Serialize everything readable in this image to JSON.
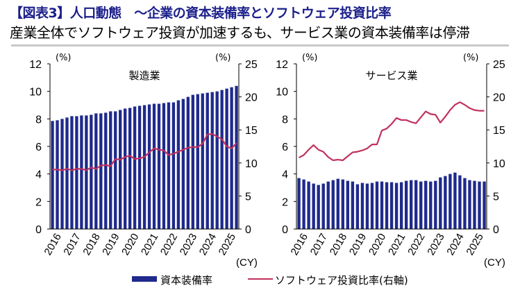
{
  "header": {
    "title": "【図表3】人口動態　～企業の資本装備率とソフトウェア投資比率",
    "subtitle": "産業全体でソフトウェア投資が加速するも、サービス業の資本装備率は停滞"
  },
  "legend": {
    "bar": "資本装備率",
    "line": "ソフトウェア投資比率(右軸)",
    "position": "bottom-center"
  },
  "colors": {
    "bar": "#1f2a8c",
    "line": "#c2305c",
    "title": "#1b1f8a"
  },
  "chart_data": [
    {
      "type": "bar+line",
      "title": "製造業",
      "left_unit": "(%)",
      "right_unit": "(%)",
      "x_unit": "(CY)",
      "ylim": [
        0,
        12
      ],
      "yticks": [
        "0",
        "2",
        "4",
        "6",
        "8",
        "10",
        "12"
      ],
      "y2lim": [
        0,
        25
      ],
      "y2ticks": [
        "0",
        "5",
        "10",
        "15",
        "20",
        "25"
      ],
      "xticks": [
        "2016",
        "2017",
        "2018",
        "2019",
        "2020",
        "2021",
        "2022",
        "2023",
        "2024",
        "2025"
      ],
      "series": [
        {
          "name": "資本装備率",
          "axis": "left",
          "values": [
            7.85,
            7.9,
            8.0,
            8.1,
            8.2,
            8.2,
            8.25,
            8.25,
            8.3,
            8.4,
            8.4,
            8.45,
            8.55,
            8.55,
            8.65,
            8.75,
            8.8,
            8.9,
            8.95,
            9.0,
            9.05,
            9.1,
            9.1,
            9.15,
            9.2,
            9.2,
            9.35,
            9.45,
            9.6,
            9.75,
            9.8,
            9.85,
            9.9,
            9.95,
            10.0,
            10.1,
            10.2,
            10.3,
            10.4
          ]
        },
        {
          "name": "ソフトウェア投資比率(右軸)",
          "axis": "right",
          "values": [
            9.0,
            9.0,
            8.9,
            9.1,
            8.9,
            9.1,
            9.1,
            8.9,
            9.3,
            9.1,
            9.6,
            9.7,
            9.5,
            10.6,
            10.5,
            10.9,
            11.1,
            10.6,
            10.7,
            10.9,
            11.6,
            12.2,
            12.0,
            11.9,
            11.2,
            11.4,
            11.7,
            12.0,
            12.3,
            12.4,
            12.4,
            12.9,
            14.3,
            14.4,
            14.0,
            13.6,
            12.5,
            12.2,
            13.0
          ]
        }
      ]
    },
    {
      "type": "bar+line",
      "title": "サービス業",
      "left_unit": "(%)",
      "right_unit": "(%)",
      "x_unit": "(CY)",
      "ylim": [
        0,
        12
      ],
      "yticks": [
        "0",
        "2",
        "4",
        "6",
        "8",
        "10",
        "12"
      ],
      "y2lim": [
        0,
        25
      ],
      "y2ticks": [
        "0",
        "5",
        "10",
        "15",
        "20",
        "25"
      ],
      "xticks": [
        "2016",
        "2017",
        "2018",
        "2019",
        "2020",
        "2021",
        "2022",
        "2023",
        "2024",
        "2025"
      ],
      "series": [
        {
          "name": "資本装備率",
          "axis": "left",
          "values": [
            3.7,
            3.6,
            3.45,
            3.3,
            3.2,
            3.3,
            3.45,
            3.55,
            3.65,
            3.6,
            3.5,
            3.45,
            3.25,
            3.35,
            3.3,
            3.35,
            3.45,
            3.45,
            3.4,
            3.4,
            3.35,
            3.4,
            3.5,
            3.55,
            3.55,
            3.45,
            3.5,
            3.45,
            3.5,
            3.75,
            3.85,
            4.0,
            4.1,
            3.9,
            3.7,
            3.55,
            3.5,
            3.45,
            3.45
          ]
        },
        {
          "name": "ソフトウェア投資比率(右軸)",
          "axis": "right",
          "values": [
            10.8,
            11.2,
            12.0,
            12.7,
            12.0,
            11.7,
            10.9,
            10.4,
            10.5,
            10.4,
            11.0,
            11.6,
            11.7,
            11.9,
            12.2,
            12.8,
            12.8,
            14.9,
            15.2,
            15.9,
            16.8,
            16.5,
            16.5,
            16.2,
            16.0,
            16.9,
            17.8,
            17.4,
            17.3,
            16.1,
            17.0,
            18.0,
            18.8,
            19.2,
            18.8,
            18.3,
            18.0,
            17.9,
            17.9
          ]
        }
      ]
    }
  ]
}
